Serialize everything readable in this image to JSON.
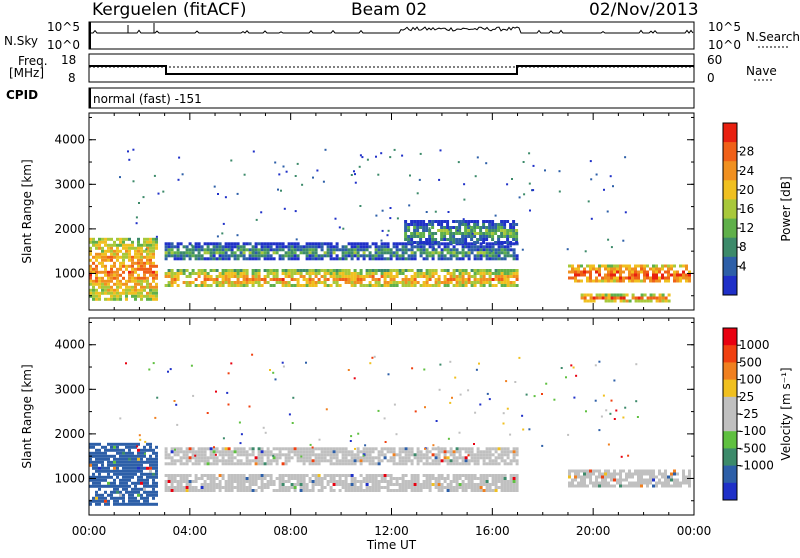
{
  "header": {
    "station": "Kerguelen (fitACF)",
    "beam": "Beam 02",
    "date": "02/Nov/2013"
  },
  "strip": {
    "nsky_label": "N.Sky",
    "nsky_ticks": [
      "10^5",
      "10^0"
    ],
    "nsearch_label": "N.Search",
    "nsearch_ticks": [
      "10^5",
      "10^0"
    ],
    "freq_label": [
      "Freq.",
      "[MHz]"
    ],
    "freq_ticks": [
      "18",
      "8"
    ],
    "nave_label": "Nave",
    "nave_ticks": [
      "60",
      "0"
    ],
    "cpid_label": "CPID",
    "cpid_text": "normal (fast) -151"
  },
  "chart_data": [
    {
      "type": "heatmap",
      "panel": "power",
      "ylabel": "Slant Range [km]",
      "ylim": [
        180,
        4600
      ],
      "yticks": [
        "1000",
        "2000",
        "3000",
        "4000"
      ],
      "xlim": [
        "00:00",
        "24:00"
      ],
      "colorbar_label": "Power [dB]",
      "colorbar_ticks": [
        "28",
        "24",
        "20",
        "16",
        "12",
        "8",
        "4"
      ],
      "colorscale": [
        "#1f30c8",
        "#2d5fa8",
        "#3c8a6a",
        "#5fb04a",
        "#a8c83a",
        "#f0c020",
        "#f09020",
        "#f06018",
        "#e82010"
      ],
      "features": [
        {
          "hour_start": 0.0,
          "hour_end": 2.7,
          "range_start": 400,
          "range_end": 1800,
          "level": 0.8
        },
        {
          "hour_start": 3.0,
          "hour_end": 17.0,
          "range_start": 700,
          "range_end": 1100,
          "level": 0.75
        },
        {
          "hour_start": 3.0,
          "hour_end": 17.0,
          "range_start": 1300,
          "range_end": 1700,
          "level": 0.35
        },
        {
          "hour_start": 12.5,
          "hour_end": 17.0,
          "range_start": 1700,
          "range_end": 2200,
          "level": 0.4
        },
        {
          "hour_start": 19.0,
          "hour_end": 23.8,
          "range_start": 800,
          "range_end": 1200,
          "level": 0.9
        },
        {
          "hour_start": 19.5,
          "hour_end": 23.0,
          "range_start": 400,
          "range_end": 550,
          "level": 0.85
        }
      ]
    },
    {
      "type": "heatmap",
      "panel": "velocity",
      "ylabel": "Slant Range [km]",
      "ylim": [
        180,
        4600
      ],
      "yticks": [
        "1000",
        "2000",
        "3000",
        "4000"
      ],
      "xlim": [
        "00:00",
        "24:00"
      ],
      "xticks": [
        "00:00",
        "04:00",
        "08:00",
        "12:00",
        "16:00",
        "20:00",
        "00:00"
      ],
      "xlabel": "Time UT",
      "colorbar_label": "Velocity [m s⁻¹]",
      "colorbar_ticks": [
        "1000",
        "500",
        "100",
        "25",
        "-25",
        "-100",
        "-500",
        "-1000"
      ],
      "colorscale": [
        "#1f30c8",
        "#2d5fa8",
        "#3c8a6a",
        "#5fc040",
        "#c0c0c0",
        "#c0c0c0",
        "#f0c020",
        "#f08020",
        "#f04010",
        "#e80010"
      ],
      "features": [
        {
          "hour_start": 0.0,
          "hour_end": 2.7,
          "range_start": 400,
          "range_end": 1800,
          "level": 0.15
        },
        {
          "hour_start": 3.0,
          "hour_end": 17.0,
          "range_start": 700,
          "range_end": 1100,
          "level": 0.5
        },
        {
          "hour_start": 3.0,
          "hour_end": 17.0,
          "range_start": 1300,
          "range_end": 1700,
          "level": 0.5
        },
        {
          "hour_start": 19.0,
          "hour_end": 23.8,
          "range_start": 800,
          "range_end": 1200,
          "level": 0.5
        }
      ]
    }
  ]
}
